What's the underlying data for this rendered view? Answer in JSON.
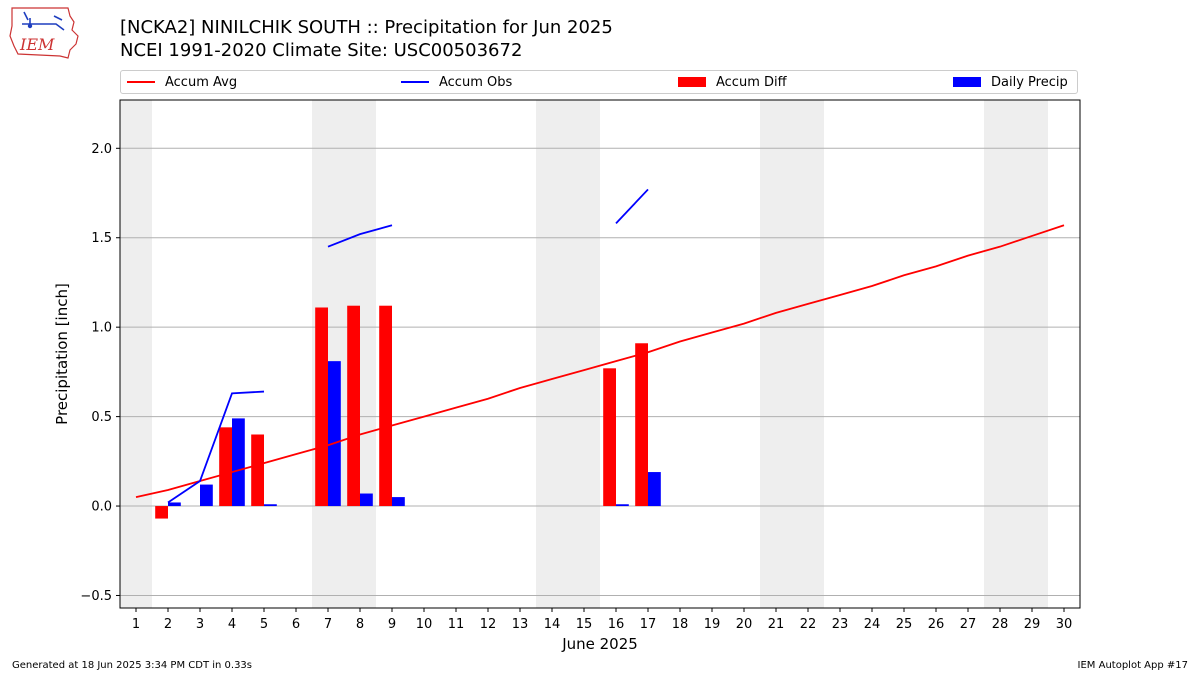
{
  "header": {
    "title_line1": "[NCKA2] NINILCHIK SOUTH :: Precipitation for Jun 2025",
    "title_line2": "NCEI 1991-2020 Climate Site: USC00503672",
    "logo_text": "IEM"
  },
  "footer": {
    "generated": "Generated at 18 Jun 2025 3:34 PM CDT in 0.33s",
    "app": "IEM Autoplot App #17"
  },
  "colors": {
    "accum_avg": "#ff0000",
    "accum_obs": "#0000ff",
    "accum_diff": "#ff0000",
    "daily_precip": "#0000ff",
    "weekend_shade": "#eeeeee",
    "grid": "#b0b0b0"
  },
  "chart_data": {
    "type": "bar",
    "xlabel": "June 2025",
    "ylabel": "Precipitation [inch]",
    "xlim": [
      0.5,
      30.5
    ],
    "ylim": [
      -0.57,
      2.27
    ],
    "yticks": [
      -0.5,
      0.0,
      0.5,
      1.0,
      1.5,
      2.0
    ],
    "ytick_labels": [
      "−0.5",
      "0.0",
      "0.5",
      "1.0",
      "1.5",
      "2.0"
    ],
    "days": [
      1,
      2,
      3,
      4,
      5,
      6,
      7,
      8,
      9,
      10,
      11,
      12,
      13,
      14,
      15,
      16,
      17,
      18,
      19,
      20,
      21,
      22,
      23,
      24,
      25,
      26,
      27,
      28,
      29,
      30
    ],
    "grid": "horizontal",
    "legend_placement": "top",
    "weekend_spans": [
      [
        0.5,
        1.5
      ],
      [
        6.5,
        8.5
      ],
      [
        13.5,
        15.5
      ],
      [
        20.5,
        22.5
      ],
      [
        27.5,
        29.5
      ]
    ],
    "legend": [
      {
        "label": "Accum Avg",
        "kind": "line",
        "color": "#ff0000"
      },
      {
        "label": "Accum Obs",
        "kind": "line",
        "color": "#0000ff"
      },
      {
        "label": "Accum Diff",
        "kind": "bar",
        "color": "#ff0000"
      },
      {
        "label": "Daily Precip",
        "kind": "bar",
        "color": "#0000ff"
      }
    ],
    "series": [
      {
        "name": "Accum Avg",
        "kind": "line",
        "values": [
          0.05,
          0.09,
          0.14,
          0.19,
          0.24,
          0.29,
          0.34,
          0.4,
          0.45,
          0.5,
          0.55,
          0.6,
          0.66,
          0.71,
          0.76,
          0.81,
          0.86,
          0.92,
          0.97,
          1.02,
          1.08,
          1.13,
          1.18,
          1.23,
          1.29,
          1.34,
          1.4,
          1.45,
          1.51,
          1.57
        ]
      },
      {
        "name": "Accum Obs",
        "kind": "line",
        "values": [
          null,
          0.02,
          0.14,
          0.63,
          0.64,
          null,
          1.45,
          1.52,
          1.57,
          null,
          null,
          null,
          null,
          null,
          null,
          1.58,
          1.77,
          null,
          null,
          null,
          null,
          null,
          null,
          null,
          null,
          null,
          null,
          null,
          null,
          null
        ]
      },
      {
        "name": "Accum Diff",
        "kind": "bar",
        "values": [
          null,
          -0.07,
          null,
          0.44,
          0.4,
          null,
          1.11,
          1.12,
          1.12,
          null,
          null,
          null,
          null,
          null,
          null,
          0.77,
          0.91,
          null,
          null,
          null,
          null,
          null,
          null,
          null,
          null,
          null,
          null,
          null,
          null,
          null
        ]
      },
      {
        "name": "Daily Precip",
        "kind": "bar",
        "values": [
          null,
          0.02,
          0.12,
          0.49,
          0.01,
          null,
          0.81,
          0.07,
          0.05,
          null,
          null,
          null,
          null,
          null,
          null,
          0.01,
          0.19,
          null,
          null,
          null,
          null,
          null,
          null,
          null,
          null,
          null,
          null,
          null,
          null,
          null
        ]
      }
    ]
  }
}
